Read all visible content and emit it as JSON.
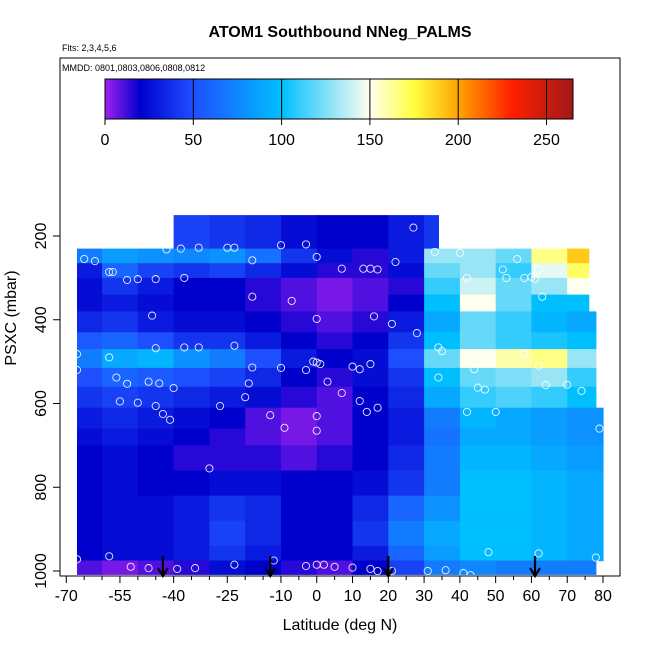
{
  "title": "ATOM1 Southbound NNeg_PALMS",
  "subtitle_flights": "Flts: 2,3,4,5,6",
  "subtitle_dates": "MMDD: 0801,0803,0806,0808,0812",
  "colorbar": {
    "range": [
      0,
      265
    ],
    "tick_values": [
      0,
      50,
      100,
      150,
      200,
      250
    ],
    "tick_labels": [
      "0",
      "50",
      "100",
      "150",
      "200",
      "250"
    ],
    "stops": [
      {
        "v": 0,
        "c": "#a020f0"
      },
      {
        "v": 20,
        "c": "#0000cd"
      },
      {
        "v": 50,
        "c": "#1e4fff"
      },
      {
        "v": 100,
        "c": "#00bfff"
      },
      {
        "v": 150,
        "c": "#fffff0"
      },
      {
        "v": 175,
        "c": "#ffff40"
      },
      {
        "v": 200,
        "c": "#ffa500"
      },
      {
        "v": 230,
        "c": "#ff2000"
      },
      {
        "v": 265,
        "c": "#a01818"
      }
    ]
  },
  "chart_data": {
    "type": "heatmap",
    "title": "ATOM1 Southbound NNeg_PALMS",
    "xlabel": "Latitude (deg N)",
    "ylabel": "PSXC (mbar)",
    "xlim": [
      -70,
      80
    ],
    "ylim": [
      1010,
      0
    ],
    "x_ticks": [
      -70,
      -55,
      -40,
      -25,
      -10,
      0,
      10,
      20,
      30,
      40,
      50,
      60,
      70,
      80
    ],
    "x_tick_labels": [
      "-70",
      "-55",
      "-40",
      "-25",
      "-10",
      "0",
      "10",
      "20",
      "30",
      "40",
      "50",
      "60",
      "70",
      "80"
    ],
    "x_minor_ticks": [
      -65,
      -60,
      -50,
      -45,
      -35,
      -30,
      -20,
      -15,
      -5,
      5,
      15,
      25,
      35,
      45,
      55,
      65,
      75
    ],
    "y_ticks": [
      200,
      400,
      600,
      800,
      1000
    ],
    "y_tick_labels": [
      "200",
      "400",
      "600",
      "800",
      "1000"
    ],
    "lat_bin_edges": [
      -67,
      -60,
      -50,
      -40,
      -30,
      -20,
      -10,
      0,
      10,
      20,
      30,
      40,
      50,
      60,
      70,
      82
    ],
    "rows": [
      {
        "p": [
          150,
          230
        ],
        "lat": [
          -45,
          34
        ],
        "v": [
          null,
          null,
          null,
          45,
          40,
          35,
          25,
          20,
          20,
          30,
          40
        ]
      },
      {
        "p": [
          230,
          265
        ],
        "lat": [
          -67,
          76
        ],
        "v": [
          70,
          85,
          80,
          75,
          80,
          65,
          40,
          25,
          15,
          30,
          130,
          130,
          120,
          165,
          190
        ]
      },
      {
        "p": [
          265,
          300
        ],
        "lat": [
          -67,
          76
        ],
        "v": [
          30,
          60,
          45,
          40,
          45,
          35,
          25,
          15,
          15,
          25,
          120,
          130,
          110,
          145,
          170
        ]
      },
      {
        "p": [
          300,
          340
        ],
        "lat": [
          -67,
          76
        ],
        "v": [
          25,
          40,
          30,
          20,
          20,
          15,
          10,
          5,
          10,
          15,
          110,
          140,
          120,
          130,
          150
        ]
      },
      {
        "p": [
          340,
          380
        ],
        "lat": [
          -67,
          76
        ],
        "v": [
          25,
          30,
          25,
          20,
          20,
          15,
          10,
          5,
          10,
          20,
          100,
          150,
          120,
          100,
          100
        ]
      },
      {
        "p": [
          380,
          430
        ],
        "lat": [
          -67,
          78
        ],
        "v": [
          35,
          40,
          30,
          25,
          25,
          20,
          15,
          10,
          15,
          30,
          90,
          120,
          110,
          95,
          90
        ]
      },
      {
        "p": [
          430,
          470
        ],
        "lat": [
          -67,
          78
        ],
        "v": [
          55,
          60,
          50,
          40,
          40,
          30,
          20,
          15,
          20,
          40,
          100,
          120,
          110,
          105,
          100
        ]
      },
      {
        "p": [
          470,
          515
        ],
        "lat": [
          -67,
          78
        ],
        "v": [
          70,
          90,
          95,
          80,
          70,
          50,
          30,
          20,
          25,
          50,
          120,
          150,
          160,
          165,
          130
        ]
      },
      {
        "p": [
          515,
          560
        ],
        "lat": [
          -67,
          78
        ],
        "v": [
          50,
          60,
          55,
          50,
          45,
          35,
          20,
          15,
          25,
          40,
          100,
          120,
          125,
          130,
          110
        ]
      },
      {
        "p": [
          560,
          610
        ],
        "lat": [
          -67,
          78
        ],
        "v": [
          40,
          45,
          40,
          35,
          30,
          25,
          15,
          10,
          20,
          35,
          90,
          110,
          115,
          110,
          100
        ]
      },
      {
        "p": [
          610,
          660
        ],
        "lat": [
          -67,
          80
        ],
        "v": [
          30,
          35,
          30,
          25,
          20,
          10,
          5,
          10,
          20,
          30,
          70,
          95,
          90,
          85,
          80
        ]
      },
      {
        "p": [
          660,
          700
        ],
        "lat": [
          -67,
          80
        ],
        "v": [
          25,
          30,
          25,
          20,
          15,
          10,
          5,
          10,
          20,
          30,
          65,
          90,
          90,
          85,
          80
        ]
      },
      {
        "p": [
          700,
          760
        ],
        "lat": [
          -67,
          80
        ],
        "v": [
          20,
          25,
          20,
          15,
          15,
          15,
          10,
          15,
          20,
          35,
          70,
          95,
          95,
          90,
          85
        ]
      },
      {
        "p": [
          760,
          820
        ],
        "lat": [
          -67,
          80
        ],
        "v": [
          20,
          25,
          20,
          20,
          25,
          25,
          20,
          20,
          25,
          40,
          70,
          100,
          100,
          95,
          90
        ]
      },
      {
        "p": [
          820,
          880
        ],
        "lat": [
          -67,
          80
        ],
        "v": [
          20,
          25,
          25,
          30,
          40,
          35,
          20,
          20,
          35,
          60,
          80,
          100,
          100,
          95,
          90
        ]
      },
      {
        "p": [
          880,
          940
        ],
        "lat": [
          -67,
          80
        ],
        "v": [
          20,
          25,
          25,
          30,
          45,
          35,
          20,
          20,
          40,
          70,
          90,
          100,
          100,
          95,
          90
        ]
      },
      {
        "p": [
          940,
          975
        ],
        "lat": [
          -67,
          80
        ],
        "v": [
          20,
          25,
          25,
          30,
          40,
          30,
          20,
          20,
          30,
          60,
          85,
          100,
          100,
          95,
          90
        ]
      },
      {
        "p": [
          975,
          1008
        ],
        "lat": [
          -67,
          78
        ],
        "v": [
          10,
          5,
          10,
          15,
          25,
          20,
          15,
          10,
          20,
          45,
          70,
          75,
          70,
          70,
          70
        ]
      }
    ],
    "sample_points": [
      [
        -45,
        200
      ],
      [
        -42,
        232
      ],
      [
        -38,
        230
      ],
      [
        -33,
        228
      ],
      [
        -25,
        228
      ],
      [
        -23,
        228
      ],
      [
        -18,
        258
      ],
      [
        -10,
        222
      ],
      [
        -3,
        220
      ],
      [
        0,
        250
      ],
      [
        7,
        278
      ],
      [
        13,
        278
      ],
      [
        15,
        278
      ],
      [
        17,
        280
      ],
      [
        22,
        262
      ],
      [
        27,
        180
      ],
      [
        33,
        238
      ],
      [
        40,
        240
      ],
      [
        52,
        280
      ],
      [
        56,
        255
      ],
      [
        58,
        300
      ],
      [
        60,
        298
      ],
      [
        61,
        302
      ],
      [
        62,
        280
      ],
      [
        -65,
        255
      ],
      [
        -62,
        260
      ],
      [
        -58,
        286
      ],
      [
        -57,
        286
      ],
      [
        -53,
        305
      ],
      [
        -50,
        303
      ],
      [
        -45,
        303
      ],
      [
        -46,
        390
      ],
      [
        -37,
        300
      ],
      [
        -18,
        345
      ],
      [
        -7,
        355
      ],
      [
        0,
        398
      ],
      [
        16,
        392
      ],
      [
        21,
        410
      ],
      [
        42,
        300
      ],
      [
        53,
        300
      ],
      [
        63,
        345
      ],
      [
        -67,
        482
      ],
      [
        -67,
        520
      ],
      [
        -58,
        490
      ],
      [
        -45,
        468
      ],
      [
        -37,
        466
      ],
      [
        -33,
        466
      ],
      [
        -23,
        462
      ],
      [
        -1,
        500
      ],
      [
        0,
        502
      ],
      [
        1,
        506
      ],
      [
        -10,
        515
      ],
      [
        -18,
        514
      ],
      [
        10,
        512
      ],
      [
        12,
        518
      ],
      [
        15,
        506
      ],
      [
        28,
        432
      ],
      [
        34,
        466
      ],
      [
        35,
        475
      ],
      [
        44,
        518
      ],
      [
        58,
        480
      ],
      [
        62,
        510
      ],
      [
        64,
        556
      ],
      [
        70,
        555
      ],
      [
        74,
        570
      ],
      [
        -56,
        538
      ],
      [
        -53,
        553
      ],
      [
        -47,
        548
      ],
      [
        -44,
        552
      ],
      [
        -40,
        563
      ],
      [
        -20,
        585
      ],
      [
        -19,
        552
      ],
      [
        -13,
        628
      ],
      [
        -3,
        520
      ],
      [
        3,
        548
      ],
      [
        7,
        575
      ],
      [
        12,
        594
      ],
      [
        14,
        620
      ],
      [
        17,
        610
      ],
      [
        34,
        538
      ],
      [
        45,
        562
      ],
      [
        47,
        567
      ],
      [
        -55,
        595
      ],
      [
        -50,
        598
      ],
      [
        -45,
        606
      ],
      [
        -43,
        625
      ],
      [
        -41,
        639
      ],
      [
        -27,
        606
      ],
      [
        -9,
        658
      ],
      [
        0,
        630
      ],
      [
        0,
        665
      ],
      [
        42,
        620
      ],
      [
        50,
        620
      ],
      [
        79,
        660
      ],
      [
        -30,
        755
      ],
      [
        -67,
        972
      ],
      [
        -58,
        965
      ],
      [
        -52,
        990
      ],
      [
        -47,
        993
      ],
      [
        -39,
        995
      ],
      [
        -34,
        993
      ],
      [
        -23,
        985
      ],
      [
        -12,
        975
      ],
      [
        -3,
        988
      ],
      [
        0,
        985
      ],
      [
        2,
        985
      ],
      [
        5,
        990
      ],
      [
        10,
        992
      ],
      [
        15,
        995
      ],
      [
        17,
        1000
      ],
      [
        21,
        1000
      ],
      [
        31,
        1000
      ],
      [
        36,
        998
      ],
      [
        41,
        1005
      ],
      [
        43,
        1010
      ],
      [
        48,
        955
      ],
      [
        62,
        958
      ],
      [
        78,
        968
      ]
    ],
    "flight_arrows_lat": [
      -43,
      -13,
      20,
      61
    ]
  }
}
